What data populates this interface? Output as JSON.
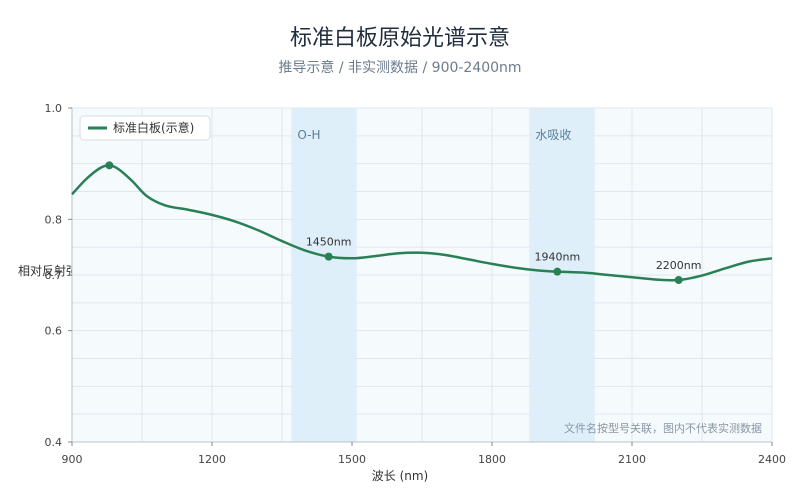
{
  "chart_data": {
    "type": "line",
    "title": "标准白板原始光谱示意",
    "subtitle": "推导示意 / 非实测数据 / 900-2400nm",
    "xlabel": "波长 (nm)",
    "ylabel": "相对反射强度",
    "xlim": [
      900,
      2400
    ],
    "ylim": [
      0.4,
      1.0
    ],
    "x_ticks": [
      900,
      1200,
      1500,
      1800,
      2100,
      2400
    ],
    "y_ticks": [
      0.4,
      0.6,
      0.7,
      0.8,
      1.0
    ],
    "y_tick_labels": [
      "0.4",
      "0.6",
      "0.7",
      "0.8",
      "1.0"
    ],
    "grid": true,
    "legend_position": "top-left",
    "series": [
      {
        "name": "标准白板(示意)",
        "color": "#2a8055",
        "x": [
          900,
          930,
          960,
          980,
          1000,
          1030,
          1060,
          1100,
          1150,
          1200,
          1250,
          1300,
          1350,
          1400,
          1450,
          1500,
          1550,
          1600,
          1650,
          1700,
          1750,
          1800,
          1850,
          1900,
          1940,
          2000,
          2050,
          2100,
          2150,
          2200,
          2250,
          2300,
          2350,
          2400
        ],
        "y": [
          0.845,
          0.872,
          0.892,
          0.897,
          0.89,
          0.868,
          0.842,
          0.825,
          0.817,
          0.808,
          0.796,
          0.78,
          0.761,
          0.744,
          0.733,
          0.73,
          0.734,
          0.739,
          0.74,
          0.736,
          0.728,
          0.72,
          0.713,
          0.708,
          0.706,
          0.704,
          0.7,
          0.696,
          0.692,
          0.691,
          0.699,
          0.712,
          0.724,
          0.73
        ]
      }
    ],
    "markers": [
      {
        "x": 980,
        "y": 0.897,
        "label": ""
      },
      {
        "x": 1450,
        "y": 0.733,
        "label": "1450nm"
      },
      {
        "x": 1940,
        "y": 0.706,
        "label": "1940nm"
      },
      {
        "x": 2200,
        "y": 0.691,
        "label": "2200nm"
      }
    ],
    "regions": [
      {
        "x0": 1370,
        "x1": 1510,
        "label": "O-H"
      },
      {
        "x0": 1880,
        "x1": 2020,
        "label": "水吸收"
      }
    ],
    "annotation": "文件名按型号关联，图内不代表实测数据"
  },
  "colors": {
    "line": "#2a8055",
    "region_fill": "#dcedfa",
    "plot_bg": "#f5fafd",
    "grid": "#dfe7ee"
  }
}
